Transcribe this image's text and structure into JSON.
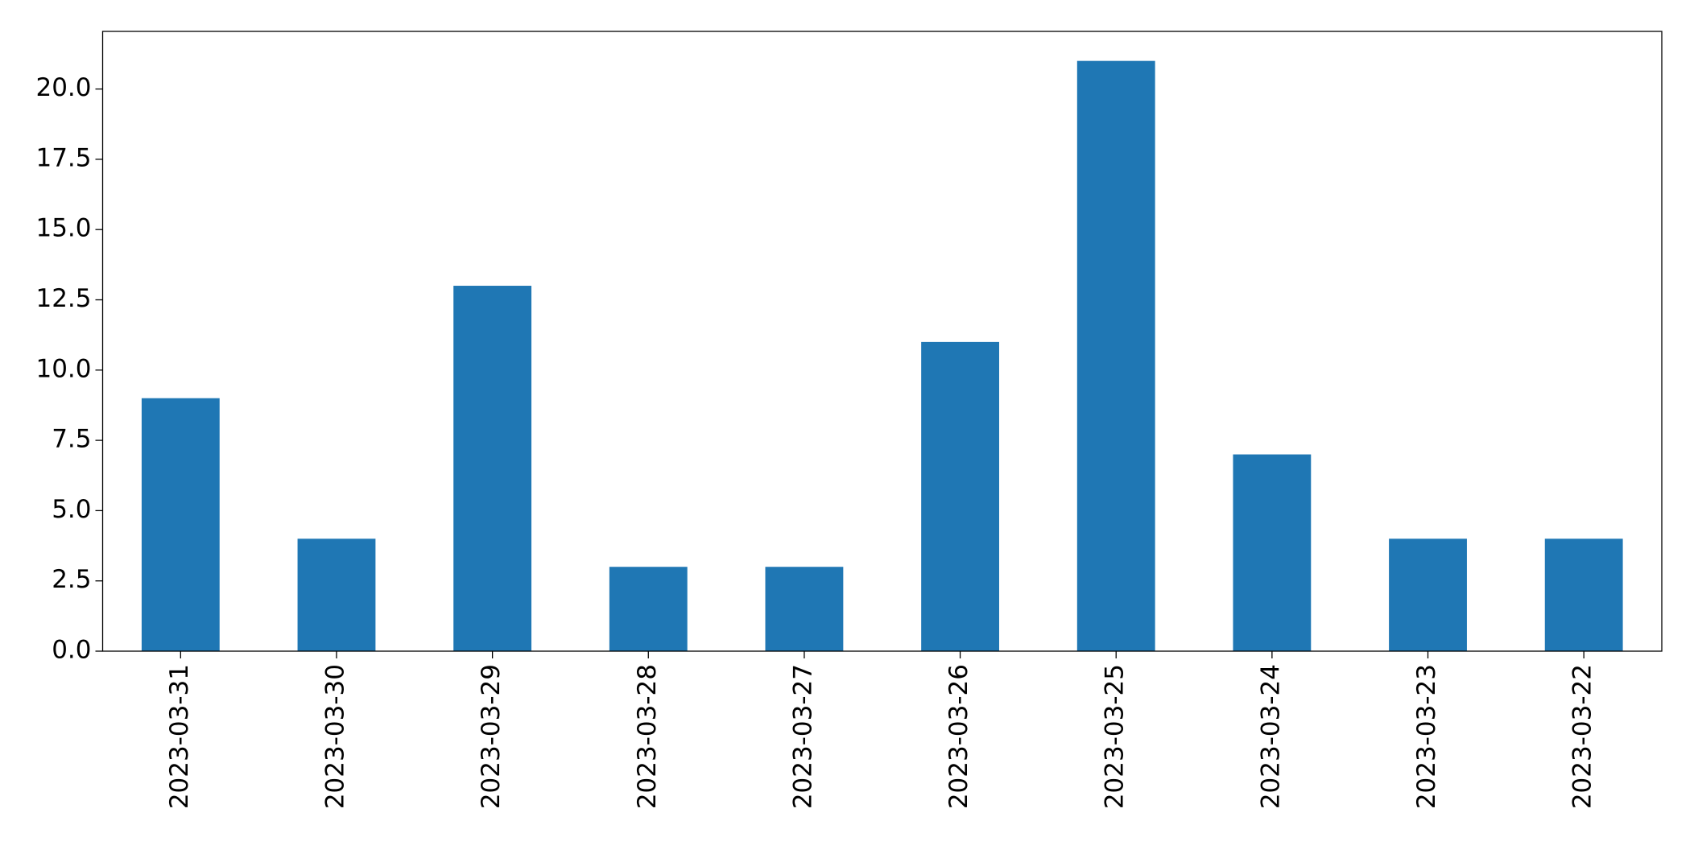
{
  "chart_data": {
    "type": "bar",
    "categories": [
      "2023-03-31",
      "2023-03-30",
      "2023-03-29",
      "2023-03-28",
      "2023-03-27",
      "2023-03-26",
      "2023-03-25",
      "2023-03-24",
      "2023-03-23",
      "2023-03-22"
    ],
    "values": [
      9,
      4,
      13,
      3,
      3,
      11,
      21,
      7,
      4,
      4
    ],
    "color": "#1f77b4",
    "ylim": [
      0,
      22.05
    ],
    "yticks": [
      {
        "value": 0,
        "label": "0.0"
      },
      2.5,
      {
        "value": 5,
        "label": "5.0"
      },
      7.5,
      {
        "value": 10,
        "label": "10.0"
      },
      12.5,
      {
        "value": 15,
        "label": "15.0"
      },
      17.5,
      {
        "value": 20,
        "label": "20.0"
      }
    ],
    "grid": false
  }
}
